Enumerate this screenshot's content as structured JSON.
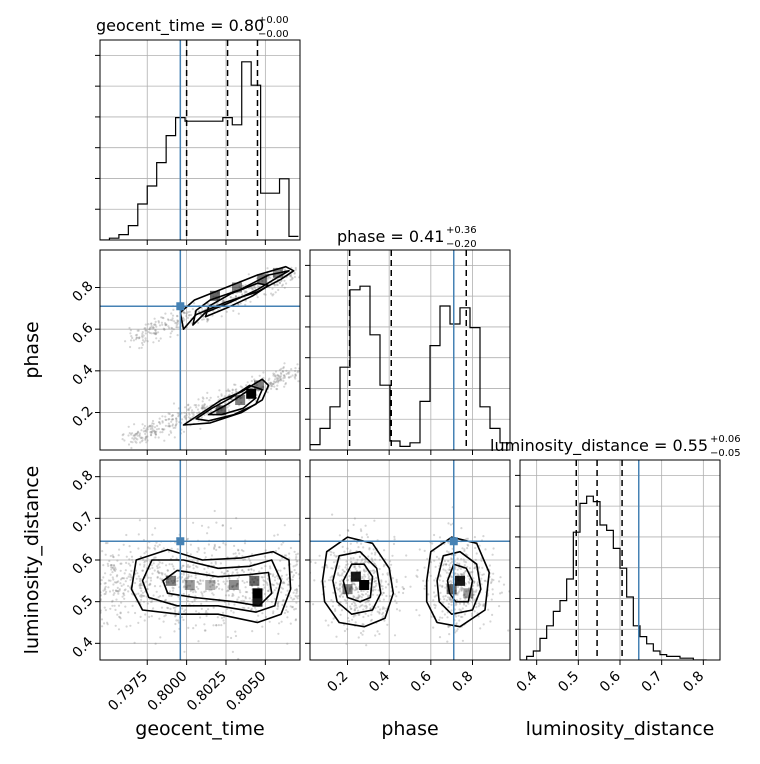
{
  "chart_data": {
    "type": "corner",
    "truth_color": "#4682b4",
    "parameters": [
      {
        "name": "geocent_time",
        "axis_label": "geocent_time",
        "title_main": "geocent_time = 0.80",
        "title_sup": "+0.00",
        "title_sub": "−0.00",
        "range": [
          0.7945,
          0.8072
        ],
        "ticks": [
          0.7975,
          0.8,
          0.8025,
          0.805
        ],
        "tick_labels": [
          "0.7975",
          "0.8000",
          "0.8025",
          "0.8050"
        ],
        "truth": 0.7996,
        "quantiles": [
          0.8,
          0.8026,
          0.8045
        ],
        "hist_x": [
          0.7945,
          0.7951,
          0.7957,
          0.7963,
          0.7969,
          0.7975,
          0.7981,
          0.7987,
          0.7993,
          0.7999,
          0.8005,
          0.8011,
          0.8017,
          0.8023,
          0.8029,
          0.8035,
          0.8041,
          0.8047,
          0.8053,
          0.8059,
          0.8065,
          0.8071
        ],
        "hist_y": [
          0.0,
          0.01,
          0.03,
          0.08,
          0.2,
          0.3,
          0.43,
          0.58,
          0.68,
          0.66,
          0.66,
          0.66,
          0.66,
          0.68,
          0.64,
          0.99,
          0.86,
          0.26,
          0.26,
          0.34,
          0.02
        ]
      },
      {
        "name": "phase",
        "axis_label": "phase",
        "title_main": "phase = 0.41",
        "title_sup": "+0.36",
        "title_sub": "−0.20",
        "range": [
          0.02,
          0.98
        ],
        "ticks": [
          0.2,
          0.4,
          0.6,
          0.8
        ],
        "tick_labels": [
          "0.2",
          "0.4",
          "0.6",
          "0.8"
        ],
        "truth": 0.71,
        "quantiles": [
          0.21,
          0.41,
          0.77
        ],
        "hist_x": [
          0.02,
          0.068,
          0.116,
          0.164,
          0.212,
          0.26,
          0.308,
          0.356,
          0.404,
          0.452,
          0.5,
          0.548,
          0.596,
          0.644,
          0.692,
          0.74,
          0.788,
          0.836,
          0.884,
          0.932,
          0.98
        ],
        "hist_y": [
          0.03,
          0.12,
          0.24,
          0.46,
          0.89,
          0.91,
          0.64,
          0.36,
          0.05,
          0.02,
          0.04,
          0.27,
          0.58,
          0.8,
          0.7,
          0.79,
          0.68,
          0.24,
          0.12,
          0.04
        ]
      },
      {
        "name": "luminosity_distance",
        "axis_label": "luminosity_distance",
        "title_main": "luminosity_distance = 0.55",
        "title_sup": "+0.06",
        "title_sub": "−0.05",
        "range": [
          0.36,
          0.84
        ],
        "ticks": [
          0.4,
          0.5,
          0.6,
          0.7,
          0.8
        ],
        "tick_labels": [
          "0.4",
          "0.5",
          "0.6",
          "0.7",
          "0.8"
        ],
        "truth": 0.645,
        "quantiles": [
          0.495,
          0.545,
          0.605
        ],
        "hist_x": [
          0.36,
          0.376,
          0.392,
          0.408,
          0.424,
          0.44,
          0.456,
          0.472,
          0.488,
          0.504,
          0.52,
          0.536,
          0.552,
          0.568,
          0.584,
          0.6,
          0.616,
          0.632,
          0.648,
          0.664,
          0.68,
          0.696,
          0.712,
          0.728,
          0.744,
          0.76,
          0.776,
          0.792,
          0.808
        ],
        "hist_y": [
          0.0,
          0.02,
          0.05,
          0.12,
          0.19,
          0.27,
          0.33,
          0.45,
          0.71,
          0.87,
          0.91,
          0.88,
          0.75,
          0.72,
          0.62,
          0.51,
          0.35,
          0.19,
          0.13,
          0.09,
          0.05,
          0.03,
          0.02,
          0.02,
          0.01,
          0.01,
          0.0,
          0.0
        ]
      }
    ],
    "panels_2d": [
      {
        "x_param": 0,
        "y_param": 1,
        "truth": [
          0.7996,
          0.71
        ],
        "contours": [
          [
            [
              0.7998,
              0.6
            ],
            [
              0.8006,
              0.67
            ],
            [
              0.8025,
              0.73
            ],
            [
              0.8045,
              0.78
            ],
            [
              0.806,
              0.84
            ],
            [
              0.8068,
              0.88
            ],
            [
              0.8063,
              0.9
            ],
            [
              0.8045,
              0.86
            ],
            [
              0.8025,
              0.8
            ],
            [
              0.8005,
              0.74
            ],
            [
              0.7996,
              0.68
            ]
          ],
          [
            [
              0.8004,
              0.62
            ],
            [
              0.8012,
              0.68
            ],
            [
              0.8028,
              0.73
            ],
            [
              0.8045,
              0.79
            ],
            [
              0.8058,
              0.85
            ],
            [
              0.8065,
              0.88
            ],
            [
              0.8052,
              0.86
            ],
            [
              0.8034,
              0.79
            ],
            [
              0.8015,
              0.74
            ],
            [
              0.8006,
              0.69
            ]
          ],
          [
            [
              0.8012,
              0.66
            ],
            [
              0.8025,
              0.7
            ],
            [
              0.8042,
              0.76
            ],
            [
              0.8052,
              0.81
            ],
            [
              0.8045,
              0.82
            ],
            [
              0.8028,
              0.77
            ],
            [
              0.8014,
              0.71
            ]
          ],
          [
            [
              0.7998,
              0.14
            ],
            [
              0.801,
              0.2
            ],
            [
              0.8022,
              0.26
            ],
            [
              0.8035,
              0.3
            ],
            [
              0.8048,
              0.36
            ],
            [
              0.8052,
              0.33
            ],
            [
              0.8048,
              0.26
            ],
            [
              0.8035,
              0.2
            ],
            [
              0.8015,
              0.15
            ]
          ],
          [
            [
              0.8006,
              0.17
            ],
            [
              0.8016,
              0.22
            ],
            [
              0.8028,
              0.27
            ],
            [
              0.804,
              0.33
            ],
            [
              0.8048,
              0.31
            ],
            [
              0.8044,
              0.24
            ],
            [
              0.803,
              0.19
            ],
            [
              0.8014,
              0.16
            ]
          ],
          [
            [
              0.8014,
              0.19
            ],
            [
              0.8026,
              0.24
            ],
            [
              0.8038,
              0.3
            ],
            [
              0.8044,
              0.27
            ],
            [
              0.8036,
              0.22
            ],
            [
              0.8022,
              0.19
            ]
          ]
        ],
        "density_cells": [
          [
            0.8018,
            0.76,
            0.6
          ],
          [
            0.8032,
            0.8,
            0.5
          ],
          [
            0.8048,
            0.84,
            0.55
          ],
          [
            0.8058,
            0.87,
            0.45
          ],
          [
            0.8022,
            0.21,
            0.6
          ],
          [
            0.8034,
            0.26,
            0.5
          ],
          [
            0.8041,
            0.29,
            1.0
          ],
          [
            0.8046,
            0.33,
            0.5
          ]
        ],
        "points": "bands"
      },
      {
        "x_param": 0,
        "y_param": 2,
        "truth": [
          0.7996,
          0.645
        ],
        "contours": [
          [
            [
              0.7965,
              0.53
            ],
            [
              0.7968,
              0.6
            ],
            [
              0.7988,
              0.625
            ],
            [
              0.801,
              0.6
            ],
            [
              0.8035,
              0.605
            ],
            [
              0.8055,
              0.62
            ],
            [
              0.8065,
              0.6
            ],
            [
              0.8066,
              0.53
            ],
            [
              0.806,
              0.47
            ],
            [
              0.8045,
              0.45
            ],
            [
              0.802,
              0.47
            ],
            [
              0.7995,
              0.47
            ],
            [
              0.7972,
              0.48
            ]
          ],
          [
            [
              0.7972,
              0.55
            ],
            [
              0.7978,
              0.6
            ],
            [
              0.7998,
              0.6
            ],
            [
              0.802,
              0.58
            ],
            [
              0.804,
              0.585
            ],
            [
              0.8054,
              0.6
            ],
            [
              0.806,
              0.55
            ],
            [
              0.8056,
              0.49
            ],
            [
              0.8044,
              0.475
            ],
            [
              0.802,
              0.49
            ],
            [
              0.7994,
              0.49
            ],
            [
              0.7976,
              0.51
            ]
          ],
          [
            [
              0.7985,
              0.55
            ],
            [
              0.7994,
              0.575
            ],
            [
              0.802,
              0.56
            ],
            [
              0.804,
              0.565
            ],
            [
              0.8052,
              0.57
            ],
            [
              0.8054,
              0.52
            ],
            [
              0.8046,
              0.49
            ],
            [
              0.803,
              0.5
            ],
            [
              0.8005,
              0.51
            ],
            [
              0.7988,
              0.52
            ]
          ]
        ],
        "density_cells": [
          [
            0.799,
            0.55,
            0.5
          ],
          [
            0.8002,
            0.54,
            0.4
          ],
          [
            0.8015,
            0.54,
            0.3
          ],
          [
            0.803,
            0.54,
            0.45
          ],
          [
            0.8043,
            0.55,
            0.6
          ],
          [
            0.8045,
            0.52,
            1.0
          ],
          [
            0.8045,
            0.5,
            0.9
          ]
        ],
        "points": "cloud"
      },
      {
        "x_param": 1,
        "y_param": 2,
        "truth": [
          0.71,
          0.645
        ],
        "contours": [
          [
            [
              0.08,
              0.55
            ],
            [
              0.1,
              0.62
            ],
            [
              0.2,
              0.655
            ],
            [
              0.32,
              0.64
            ],
            [
              0.4,
              0.58
            ],
            [
              0.42,
              0.52
            ],
            [
              0.38,
              0.46
            ],
            [
              0.28,
              0.44
            ],
            [
              0.16,
              0.45
            ],
            [
              0.09,
              0.5
            ]
          ],
          [
            [
              0.13,
              0.55
            ],
            [
              0.16,
              0.61
            ],
            [
              0.26,
              0.62
            ],
            [
              0.34,
              0.58
            ],
            [
              0.36,
              0.52
            ],
            [
              0.32,
              0.48
            ],
            [
              0.22,
              0.47
            ],
            [
              0.15,
              0.5
            ]
          ],
          [
            [
              0.18,
              0.55
            ],
            [
              0.22,
              0.59
            ],
            [
              0.28,
              0.59
            ],
            [
              0.32,
              0.56
            ],
            [
              0.31,
              0.51
            ],
            [
              0.26,
              0.5
            ],
            [
              0.2,
              0.51
            ]
          ],
          [
            [
              0.58,
              0.55
            ],
            [
              0.6,
              0.62
            ],
            [
              0.7,
              0.655
            ],
            [
              0.82,
              0.64
            ],
            [
              0.88,
              0.57
            ],
            [
              0.86,
              0.48
            ],
            [
              0.74,
              0.44
            ],
            [
              0.63,
              0.45
            ],
            [
              0.58,
              0.5
            ]
          ],
          [
            [
              0.63,
              0.55
            ],
            [
              0.66,
              0.61
            ],
            [
              0.74,
              0.62
            ],
            [
              0.82,
              0.59
            ],
            [
              0.84,
              0.53
            ],
            [
              0.8,
              0.48
            ],
            [
              0.7,
              0.47
            ],
            [
              0.64,
              0.5
            ]
          ],
          [
            [
              0.68,
              0.55
            ],
            [
              0.71,
              0.59
            ],
            [
              0.77,
              0.58
            ],
            [
              0.8,
              0.55
            ],
            [
              0.78,
              0.5
            ],
            [
              0.72,
              0.5
            ],
            [
              0.69,
              0.52
            ]
          ]
        ],
        "density_cells": [
          [
            0.24,
            0.56,
            0.9
          ],
          [
            0.28,
            0.54,
            1.0
          ],
          [
            0.2,
            0.53,
            0.5
          ],
          [
            0.74,
            0.55,
            0.9
          ],
          [
            0.7,
            0.53,
            0.6
          ],
          [
            0.78,
            0.52,
            0.4
          ]
        ],
        "points": "two_blobs"
      }
    ]
  }
}
